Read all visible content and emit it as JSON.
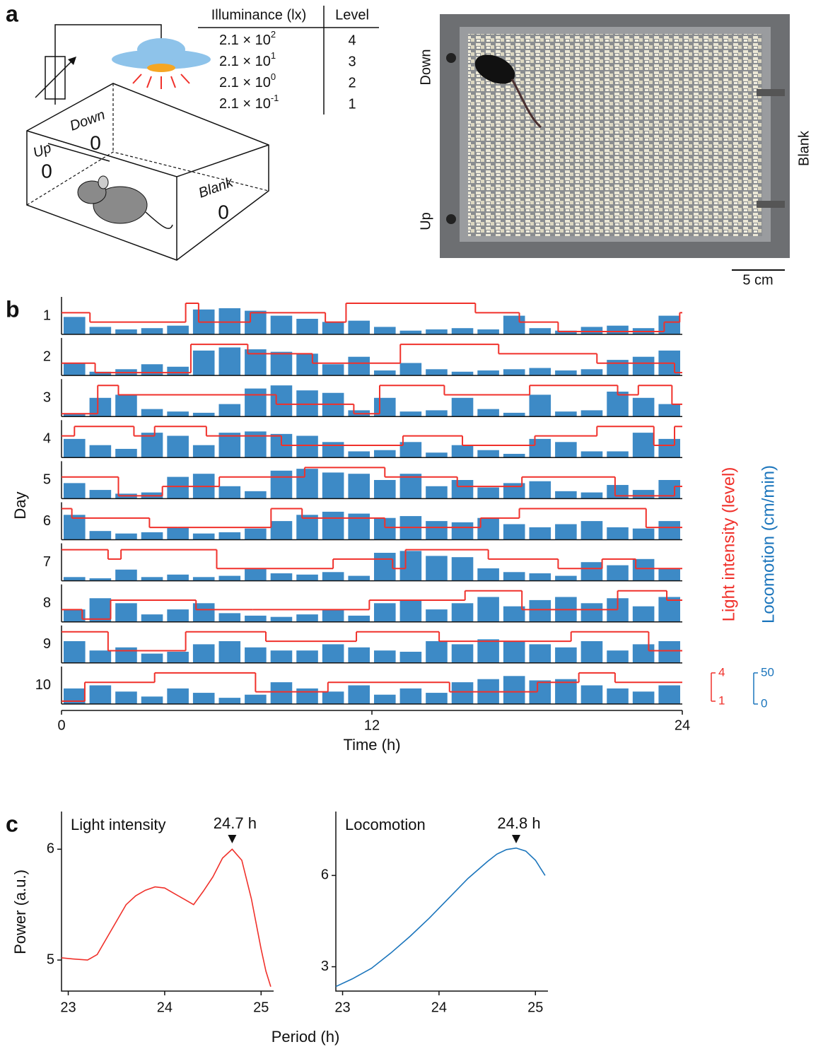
{
  "panel_a": {
    "label": "a",
    "diagram": {
      "up": "Up",
      "down": "Down",
      "blank": "Blank",
      "counts": [
        "0",
        "0",
        "0"
      ]
    },
    "table": {
      "headers": [
        "Illuminance (lx)",
        "Level"
      ],
      "rows": [
        {
          "base": "2.1 × 10",
          "exp": "2",
          "level": "4"
        },
        {
          "base": "2.1 × 10",
          "exp": "1",
          "level": "3"
        },
        {
          "base": "2.1 × 10",
          "exp": "0",
          "level": "2"
        },
        {
          "base": "2.1 × 10",
          "exp": "-1",
          "level": "1"
        }
      ]
    },
    "photo": {
      "down": "Down",
      "up": "Up",
      "blank": "Blank",
      "scale": "5 cm"
    }
  },
  "panel_labels": {
    "b": "b",
    "c": "c"
  },
  "chart_data": [
    {
      "type": "actogram",
      "xlabel": "Time (h)",
      "ylabel": "Day",
      "xlim": [
        0,
        24
      ],
      "xticks": [
        0,
        12,
        24
      ],
      "light": {
        "name": "Light intensity (level)",
        "color": "#f0312b",
        "ylim": [
          1,
          4
        ],
        "yticks": [
          4,
          1
        ]
      },
      "locomotion": {
        "name": "Locomotion (cm/min)",
        "color": "#1b75bc",
        "ylim": [
          0,
          50
        ],
        "yticks": [
          50,
          0
        ]
      },
      "locomotion_x": [
        0,
        1,
        2,
        3,
        4,
        5,
        6,
        7,
        8,
        9,
        10,
        11,
        12,
        13,
        14,
        15,
        16,
        17,
        18,
        19,
        20,
        21,
        22,
        23
      ],
      "days": [
        {
          "label": 1,
          "light_x": [
            0,
            1.1,
            4.8,
            5.3,
            7.3,
            10.2,
            11,
            16,
            17.7,
            19.2,
            23.3,
            23.9
          ],
          "light": [
            3,
            2,
            4,
            2,
            3,
            2,
            4,
            3,
            2,
            1,
            2,
            3
          ],
          "locomotion": [
            28,
            12,
            8,
            10,
            14,
            40,
            42,
            38,
            30,
            25,
            20,
            22,
            12,
            6,
            8,
            10,
            8,
            30,
            10,
            6,
            12,
            14,
            10,
            30
          ]
        },
        {
          "label": 2,
          "light_x": [
            0,
            1.3,
            5,
            7.2,
            9.7,
            13.1,
            16.9,
            20.7,
            23.7
          ],
          "light": [
            2,
            1,
            4,
            3,
            2,
            4,
            3,
            2,
            1
          ],
          "locomotion": [
            20,
            6,
            10,
            18,
            14,
            40,
            45,
            42,
            38,
            35,
            18,
            30,
            8,
            20,
            10,
            6,
            8,
            10,
            12,
            8,
            10,
            25,
            30,
            40
          ]
        },
        {
          "label": 3,
          "light_x": [
            0,
            1.4,
            2.2,
            8.3,
            11.3,
            12.3,
            14.8,
            18.1,
            21.5,
            22.3,
            23.6
          ],
          "light": [
            1,
            4,
            3,
            2,
            1,
            4,
            3,
            4,
            3,
            4,
            2
          ],
          "locomotion": [
            4,
            30,
            35,
            12,
            8,
            6,
            20,
            45,
            50,
            42,
            38,
            10,
            30,
            8,
            10,
            30,
            12,
            6,
            35,
            8,
            10,
            40,
            30,
            20
          ]
        },
        {
          "label": 4,
          "light_x": [
            0,
            0.5,
            2.8,
            3.6,
            5.6,
            8.5,
            13.2,
            15.5,
            18.3,
            20.7,
            22.9,
            23.7
          ],
          "light": [
            3,
            4,
            3,
            4,
            3,
            2,
            3,
            2,
            3,
            4,
            2,
            4
          ],
          "locomotion": [
            30,
            20,
            14,
            40,
            35,
            20,
            40,
            42,
            38,
            35,
            25,
            10,
            12,
            25,
            8,
            20,
            12,
            6,
            30,
            25,
            10,
            10,
            40,
            30
          ]
        },
        {
          "label": 5,
          "light_x": [
            0,
            2.2,
            3.9,
            6.1,
            9.4,
            12.5,
            15.3,
            17.8,
            21.4,
            23.7
          ],
          "light": [
            3,
            1,
            2,
            3,
            4,
            3,
            2,
            3,
            1,
            2
          ],
          "locomotion": [
            25,
            14,
            8,
            10,
            35,
            40,
            20,
            12,
            45,
            48,
            42,
            40,
            30,
            40,
            20,
            30,
            18,
            25,
            28,
            12,
            10,
            22,
            14,
            30
          ]
        },
        {
          "label": 6,
          "light_x": [
            0,
            0.4,
            3.4,
            4.5,
            8.1,
            9.3,
            12.5,
            16.2,
            17.7,
            22.6
          ],
          "light": [
            4,
            3,
            2,
            2,
            4,
            3,
            2,
            3,
            4,
            2
          ],
          "locomotion": [
            40,
            14,
            10,
            12,
            20,
            10,
            12,
            18,
            30,
            40,
            45,
            42,
            35,
            38,
            30,
            28,
            35,
            25,
            20,
            25,
            30,
            20,
            18,
            30
          ]
        },
        {
          "label": 7,
          "light_x": [
            0,
            1.8,
            2.3,
            6,
            10.5,
            12.8,
            13.3,
            16.5,
            19.2,
            20.9,
            22.2
          ],
          "light": [
            4,
            3,
            4,
            2,
            3,
            2,
            4,
            3,
            2,
            3,
            2
          ],
          "locomotion": [
            6,
            4,
            18,
            6,
            10,
            6,
            8,
            20,
            12,
            10,
            14,
            8,
            45,
            48,
            40,
            38,
            20,
            14,
            12,
            8,
            30,
            25,
            35,
            20
          ]
        },
        {
          "label": 8,
          "light_x": [
            0,
            0.8,
            1.9,
            5.2,
            7.4,
            11.9,
            15.6,
            17.8,
            21.5,
            23.4
          ],
          "light": [
            2,
            1,
            3,
            2,
            2,
            3,
            4,
            2,
            4,
            3
          ],
          "locomotion": [
            20,
            38,
            30,
            12,
            20,
            30,
            14,
            10,
            8,
            12,
            20,
            10,
            30,
            35,
            20,
            30,
            40,
            25,
            35,
            40,
            30,
            38,
            25,
            40
          ]
        },
        {
          "label": 9,
          "light_x": [
            0,
            1.8,
            4.8,
            7.9,
            11.4,
            14.6,
            19.7,
            22.7
          ],
          "light": [
            4,
            2,
            4,
            3,
            4,
            3,
            4,
            2
          ],
          "locomotion": [
            35,
            20,
            25,
            15,
            18,
            30,
            35,
            25,
            20,
            20,
            30,
            25,
            20,
            18,
            35,
            30,
            38,
            35,
            30,
            25,
            35,
            20,
            30,
            35
          ]
        },
        {
          "label": 10,
          "light_x": [
            0,
            0.9,
            3.6,
            7.5,
            10.3,
            15,
            18.4,
            20,
            21.4
          ],
          "light": [
            1,
            3,
            4,
            2,
            3,
            2,
            3,
            4,
            3
          ],
          "locomotion": [
            25,
            30,
            20,
            12,
            25,
            18,
            10,
            15,
            35,
            25,
            20,
            30,
            15,
            25,
            18,
            35,
            40,
            45,
            38,
            40,
            30,
            25,
            20,
            30
          ]
        }
      ]
    },
    {
      "type": "line",
      "title": "Light intensity",
      "ylabel": "Power (a.u.)",
      "xlabel": "Period (h)",
      "color": "#f0312b",
      "x": [
        22.93,
        23.05,
        23.2,
        23.3,
        23.4,
        23.5,
        23.6,
        23.7,
        23.8,
        23.9,
        24.0,
        24.1,
        24.2,
        24.3,
        24.4,
        24.5,
        24.6,
        24.7,
        24.8,
        24.9,
        25.0,
        25.05,
        25.1
      ],
      "values": [
        5.02,
        5.01,
        5.0,
        5.05,
        5.2,
        5.35,
        5.5,
        5.58,
        5.63,
        5.66,
        5.65,
        5.6,
        5.55,
        5.5,
        5.62,
        5.75,
        5.92,
        6.0,
        5.9,
        5.55,
        5.1,
        4.9,
        4.76
      ],
      "xlim": [
        22.93,
        25.13
      ],
      "ylim": [
        4.72,
        6.34
      ],
      "xticks": [
        23,
        24,
        25
      ],
      "yticks": [
        5,
        6
      ],
      "annotation": {
        "text": "24.7 h",
        "x": 24.7
      }
    },
    {
      "type": "line",
      "title": "Locomotion",
      "color": "#1b75bc",
      "x": [
        22.93,
        23.1,
        23.3,
        23.5,
        23.7,
        23.9,
        24.1,
        24.3,
        24.5,
        24.6,
        24.7,
        24.8,
        24.9,
        25.0,
        25.1
      ],
      "values": [
        2.35,
        2.6,
        2.95,
        3.45,
        4.0,
        4.6,
        5.25,
        5.9,
        6.45,
        6.7,
        6.85,
        6.9,
        6.8,
        6.5,
        6.0
      ],
      "xlim": [
        22.93,
        25.13
      ],
      "ylim": [
        2.2,
        8.1
      ],
      "xticks": [
        23,
        24,
        25
      ],
      "yticks": [
        3,
        6
      ],
      "annotation": {
        "text": "24.8 h",
        "x": 24.8
      }
    }
  ]
}
